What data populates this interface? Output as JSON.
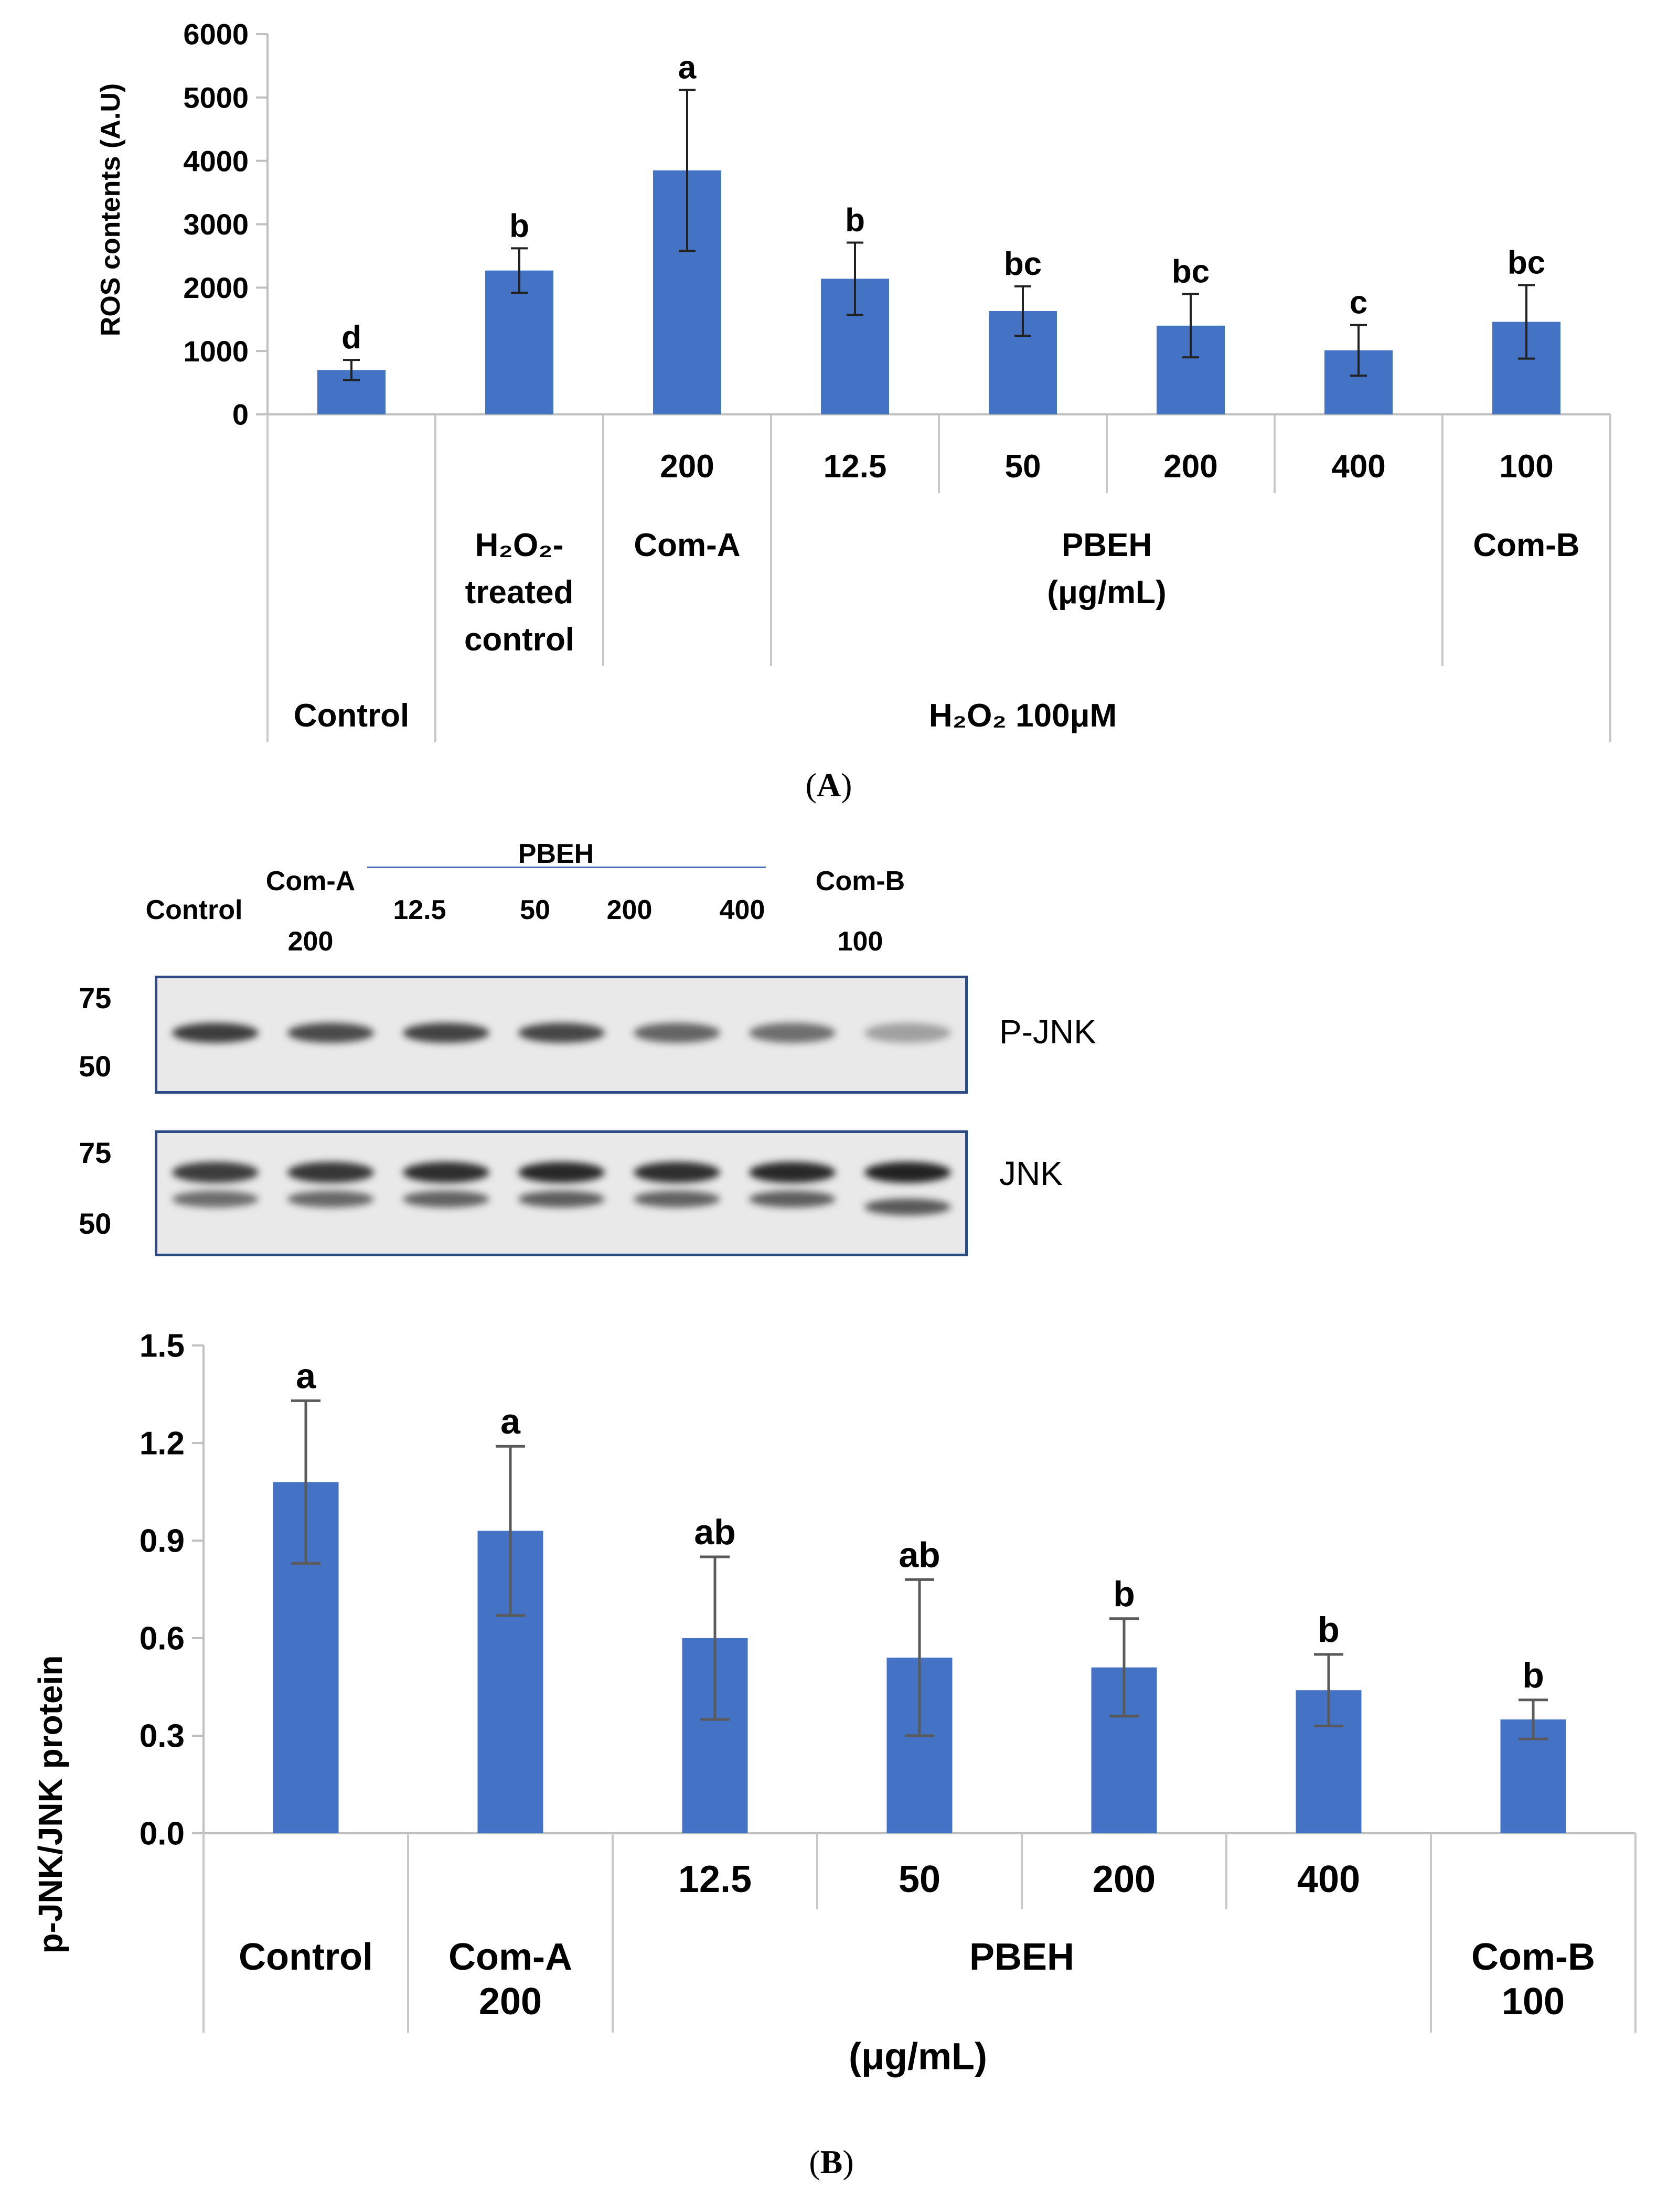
{
  "panel_a": {
    "label": "A",
    "chart_data": {
      "type": "bar",
      "ylabel": "ROS contents (A.U)",
      "ylim": [
        0,
        6000
      ],
      "yticks": [
        0,
        1000,
        2000,
        3000,
        4000,
        5000,
        6000
      ],
      "bar_color": "#4472c4",
      "categories": [
        "Control",
        "H2O2-treated control",
        "Com-A 200",
        "PBEH 12.5",
        "PBEH 50",
        "PBEH 200",
        "PBEH 400",
        "Com-B 100"
      ],
      "values": [
        700,
        2270,
        3850,
        2140,
        1630,
        1400,
        1010,
        1460
      ],
      "errors": [
        160,
        350,
        1270,
        570,
        390,
        500,
        400,
        580
      ],
      "significance": [
        "d",
        "b",
        "a",
        "b",
        "bc",
        "bc",
        "c",
        "bc"
      ],
      "x_axis_rows": {
        "doses": [
          "200",
          "12.5",
          "50",
          "200",
          "400",
          "100"
        ],
        "group_labels": [
          "H₂O₂-treated control",
          "Com-A",
          "PBEH (μg/mL)",
          "Com-B"
        ],
        "h2o2_treated_line1": "H₂O₂-",
        "h2o2_treated_line2": "treated",
        "h2o2_treated_line3": "control",
        "pbeh_line1": "PBEH",
        "pbeh_line2": "(μg/mL)",
        "control": "Control",
        "h2o2_condition": "H₂O₂ 100μM"
      }
    }
  },
  "panel_b": {
    "label": "B",
    "western_blot": {
      "lane_labels": {
        "control": "Control",
        "com_a": "Com-A",
        "com_a_dose": "200",
        "pbeh": "PBEH",
        "pbeh_doses": [
          "12.5",
          "50",
          "200",
          "400"
        ],
        "com_b": "Com-B",
        "com_b_dose": "100"
      },
      "blots": [
        {
          "name": "P-JNK",
          "mw_markers": [
            "75",
            "50"
          ],
          "intensities": [
            0.85,
            0.78,
            0.82,
            0.8,
            0.65,
            0.6,
            0.35
          ]
        },
        {
          "name": "JNK",
          "mw_markers": [
            "75",
            "50"
          ],
          "intensities": [
            0.85,
            0.88,
            0.92,
            0.95,
            0.92,
            0.95,
            0.98
          ]
        }
      ]
    },
    "chart_data": {
      "type": "bar",
      "ylabel": "p-JNK/JNK protein",
      "ylim": [
        0,
        1.5
      ],
      "yticks": [
        "0.0",
        "0.3",
        "0.6",
        "0.9",
        "1.2",
        "1.5"
      ],
      "bar_color": "#4472c4",
      "categories": [
        "Control",
        "Com-A 200",
        "PBEH 12.5",
        "PBEH 50",
        "PBEH 200",
        "PBEH 400",
        "Com-B 100"
      ],
      "values": [
        1.08,
        0.93,
        0.6,
        0.54,
        0.51,
        0.44,
        0.35
      ],
      "errors": [
        0.25,
        0.26,
        0.25,
        0.24,
        0.15,
        0.11,
        0.06
      ],
      "significance": [
        "a",
        "a",
        "ab",
        "ab",
        "b",
        "b",
        "b"
      ],
      "x_axis_rows": {
        "doses": [
          "12.5",
          "50",
          "200",
          "400"
        ],
        "control": "Control",
        "com_a_line1": "Com-A",
        "com_a_line2": "200",
        "pbeh": "PBEH",
        "com_b_line1": "Com-B",
        "com_b_line2": "100",
        "unit": "(μg/mL)"
      }
    }
  }
}
